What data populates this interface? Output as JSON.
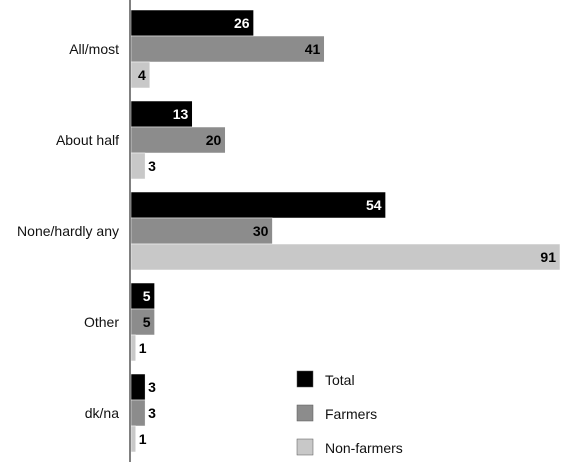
{
  "chart_data": {
    "type": "bar",
    "orientation": "horizontal",
    "categories": [
      "All/most",
      "About half",
      "None/hardly any",
      "Other",
      "dk/na"
    ],
    "series": [
      {
        "name": "Total",
        "color": "#000000",
        "label_color": "#ffffff",
        "values": [
          26,
          13,
          54,
          5,
          3
        ]
      },
      {
        "name": "Farmers",
        "color": "#8c8c8c",
        "label_color": "#000000",
        "values": [
          41,
          20,
          30,
          5,
          3
        ]
      },
      {
        "name": "Non-farmers",
        "color": "#c8c8c8",
        "label_color": "#000000",
        "values": [
          4,
          3,
          91,
          1,
          1
        ]
      }
    ],
    "xlim": [
      0,
      91
    ],
    "grid": false,
    "legend_position": "bottom-right"
  }
}
